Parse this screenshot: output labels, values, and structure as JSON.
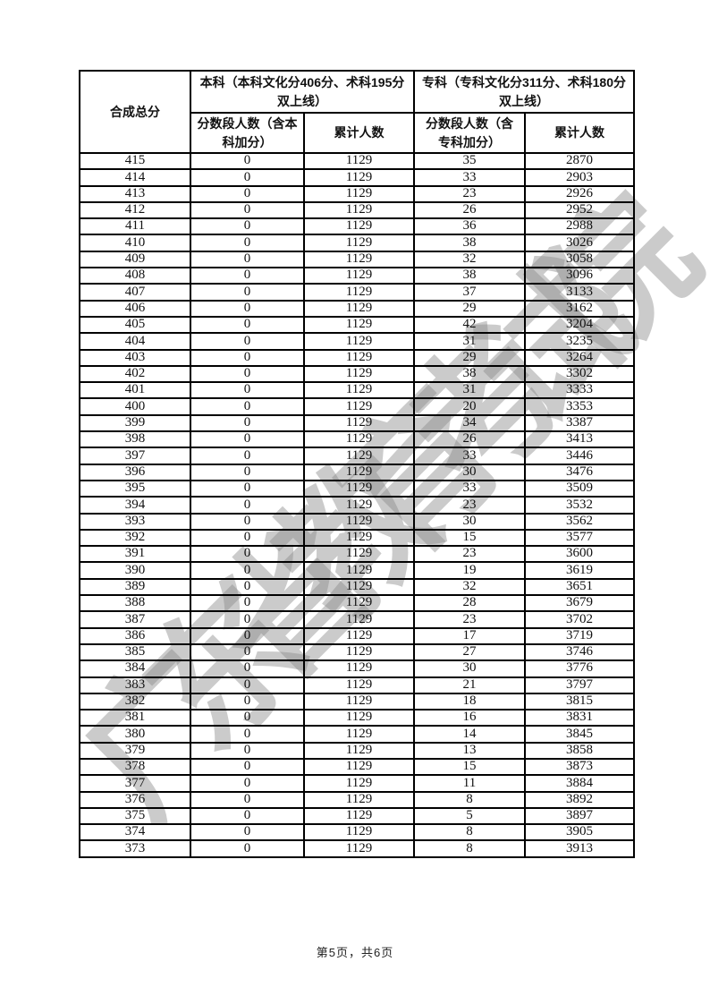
{
  "page": {
    "watermark": "广东省教育考试院",
    "footer": "第5页，共6页"
  },
  "table": {
    "header": {
      "col_score": "合成总分",
      "group_benke": "本科（本科文化分406分、术科195分双上线）",
      "group_zhuanke": "专科（专科文化分311分、术科180分双上线）",
      "sub_benke_seg": "分数段人数（含本科加分）",
      "sub_benke_cum": "累计人数",
      "sub_zhuanke_seg": "分数段人数（含专科加分）",
      "sub_zhuanke_cum": "累计人数"
    },
    "rows": [
      [
        "415",
        "0",
        "1129",
        "35",
        "2870"
      ],
      [
        "414",
        "0",
        "1129",
        "33",
        "2903"
      ],
      [
        "413",
        "0",
        "1129",
        "23",
        "2926"
      ],
      [
        "412",
        "0",
        "1129",
        "26",
        "2952"
      ],
      [
        "411",
        "0",
        "1129",
        "36",
        "2988"
      ],
      [
        "410",
        "0",
        "1129",
        "38",
        "3026"
      ],
      [
        "409",
        "0",
        "1129",
        "32",
        "3058"
      ],
      [
        "408",
        "0",
        "1129",
        "38",
        "3096"
      ],
      [
        "407",
        "0",
        "1129",
        "37",
        "3133"
      ],
      [
        "406",
        "0",
        "1129",
        "29",
        "3162"
      ],
      [
        "405",
        "0",
        "1129",
        "42",
        "3204"
      ],
      [
        "404",
        "0",
        "1129",
        "31",
        "3235"
      ],
      [
        "403",
        "0",
        "1129",
        "29",
        "3264"
      ],
      [
        "402",
        "0",
        "1129",
        "38",
        "3302"
      ],
      [
        "401",
        "0",
        "1129",
        "31",
        "3333"
      ],
      [
        "400",
        "0",
        "1129",
        "20",
        "3353"
      ],
      [
        "399",
        "0",
        "1129",
        "34",
        "3387"
      ],
      [
        "398",
        "0",
        "1129",
        "26",
        "3413"
      ],
      [
        "397",
        "0",
        "1129",
        "33",
        "3446"
      ],
      [
        "396",
        "0",
        "1129",
        "30",
        "3476"
      ],
      [
        "395",
        "0",
        "1129",
        "33",
        "3509"
      ],
      [
        "394",
        "0",
        "1129",
        "23",
        "3532"
      ],
      [
        "393",
        "0",
        "1129",
        "30",
        "3562"
      ],
      [
        "392",
        "0",
        "1129",
        "15",
        "3577"
      ],
      [
        "391",
        "0",
        "1129",
        "23",
        "3600"
      ],
      [
        "390",
        "0",
        "1129",
        "19",
        "3619"
      ],
      [
        "389",
        "0",
        "1129",
        "32",
        "3651"
      ],
      [
        "388",
        "0",
        "1129",
        "28",
        "3679"
      ],
      [
        "387",
        "0",
        "1129",
        "23",
        "3702"
      ],
      [
        "386",
        "0",
        "1129",
        "17",
        "3719"
      ],
      [
        "385",
        "0",
        "1129",
        "27",
        "3746"
      ],
      [
        "384",
        "0",
        "1129",
        "30",
        "3776"
      ],
      [
        "383",
        "0",
        "1129",
        "21",
        "3797"
      ],
      [
        "382",
        "0",
        "1129",
        "18",
        "3815"
      ],
      [
        "381",
        "0",
        "1129",
        "16",
        "3831"
      ],
      [
        "380",
        "0",
        "1129",
        "14",
        "3845"
      ],
      [
        "379",
        "0",
        "1129",
        "13",
        "3858"
      ],
      [
        "378",
        "0",
        "1129",
        "15",
        "3873"
      ],
      [
        "377",
        "0",
        "1129",
        "11",
        "3884"
      ],
      [
        "376",
        "0",
        "1129",
        "8",
        "3892"
      ],
      [
        "375",
        "0",
        "1129",
        "5",
        "3897"
      ],
      [
        "374",
        "0",
        "1129",
        "8",
        "3905"
      ],
      [
        "373",
        "0",
        "1129",
        "8",
        "3913"
      ]
    ]
  }
}
